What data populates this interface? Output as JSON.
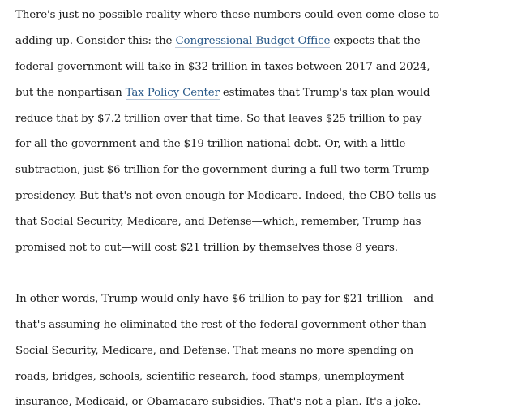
{
  "article": {
    "paragraph1": {
      "line1": "There's just no possible reality where these numbers could even come close to",
      "line2_pre": "adding up. Consider this: the ",
      "line2_link": "Congressional Budget Office",
      "line2_post": " expects that the",
      "line3": "federal government will take in $32 trillion in taxes between 2017 and 2024,",
      "line4_pre": "but the nonpartisan ",
      "line4_link": "Tax Policy Center",
      "line4_post": " estimates that Trump's tax plan would",
      "line5": "reduce that by $7.2 trillion over that time. So that leaves $25 trillion to pay",
      "line6": "for all the government and the $19 trillion national debt. Or, with a little",
      "line7": "subtraction, just $6 trillion for the government during a full two-term Trump",
      "line8": "presidency. But that's not even enough for Medicare. Indeed, the CBO tells us",
      "line9": "that Social Security, Medicare, and Defense—which, remember, Trump has",
      "line10": "promised not to cut—will cost $21 trillion by themselves those 8 years."
    },
    "paragraph2": {
      "line1": "In other words, Trump would only have $6 trillion to pay for $21 trillion—and",
      "line2": "that's assuming he eliminated the rest of the federal government other than",
      "line3": "Social Security, Medicare, and Defense. That means no more spending on",
      "line4": "roads, bridges, schools, scientific research, food stamps, unemployment",
      "line5": "insurance, Medicaid, or Obamacare subsidies. That's not a plan. It's a joke."
    }
  },
  "colors": {
    "text": "#1c1c1c",
    "link": "#2a5a8a",
    "link_underline": "#b8c7d8",
    "background": "#ffffff"
  }
}
